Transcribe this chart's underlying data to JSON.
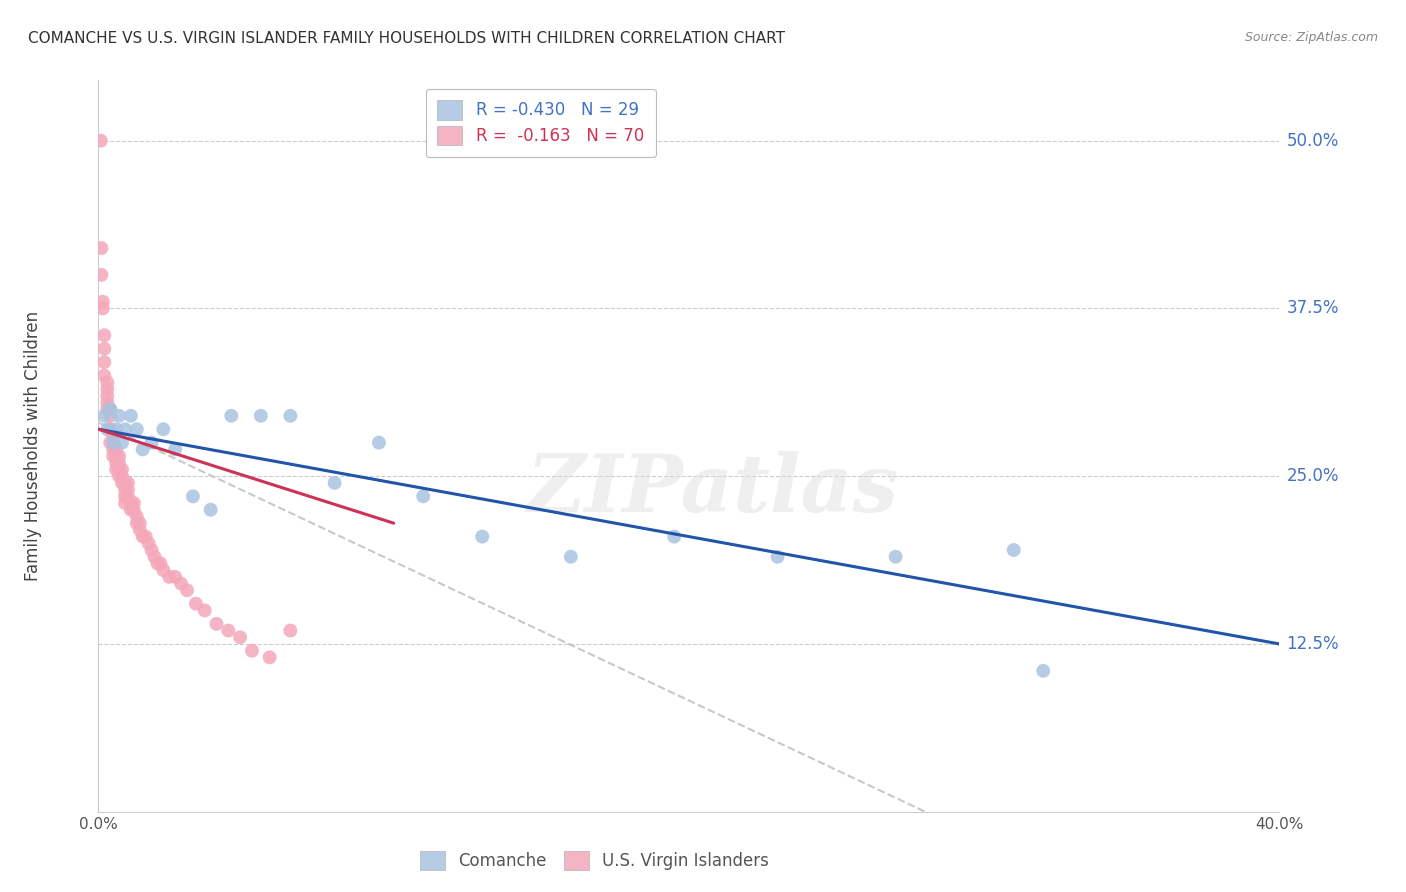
{
  "title": "COMANCHE VS U.S. VIRGIN ISLANDER FAMILY HOUSEHOLDS WITH CHILDREN CORRELATION CHART",
  "source": "Source: ZipAtlas.com",
  "ylabel": "Family Households with Children",
  "ytick_labels": [
    "50.0%",
    "37.5%",
    "25.0%",
    "12.5%"
  ],
  "ytick_values": [
    0.5,
    0.375,
    0.25,
    0.125
  ],
  "comanche_color": "#A8C4E0",
  "virgin_color": "#F4A7B9",
  "trendline_comanche_color": "#2255AA",
  "trendline_virgin_color": "#CC3355",
  "trendline_gray_color": "#BBBBBB",
  "watermark_text": "ZIPatlas",
  "background_color": "#FFFFFF",
  "comanche_x": [
    0.002,
    0.003,
    0.004,
    0.005,
    0.006,
    0.007,
    0.008,
    0.009,
    0.011,
    0.013,
    0.015,
    0.018,
    0.022,
    0.026,
    0.032,
    0.038,
    0.045,
    0.055,
    0.065,
    0.08,
    0.095,
    0.11,
    0.13,
    0.16,
    0.195,
    0.23,
    0.27,
    0.31,
    0.32
  ],
  "comanche_y": [
    0.295,
    0.285,
    0.3,
    0.275,
    0.285,
    0.295,
    0.275,
    0.285,
    0.295,
    0.285,
    0.27,
    0.275,
    0.285,
    0.27,
    0.235,
    0.225,
    0.295,
    0.295,
    0.295,
    0.245,
    0.275,
    0.235,
    0.205,
    0.19,
    0.205,
    0.19,
    0.19,
    0.195,
    0.105
  ],
  "virgin_x": [
    0.0008,
    0.001,
    0.001,
    0.0015,
    0.0015,
    0.002,
    0.002,
    0.002,
    0.002,
    0.003,
    0.003,
    0.003,
    0.003,
    0.003,
    0.004,
    0.004,
    0.004,
    0.004,
    0.004,
    0.005,
    0.005,
    0.005,
    0.005,
    0.006,
    0.006,
    0.006,
    0.006,
    0.006,
    0.007,
    0.007,
    0.007,
    0.007,
    0.008,
    0.008,
    0.008,
    0.009,
    0.009,
    0.009,
    0.009,
    0.01,
    0.01,
    0.01,
    0.011,
    0.011,
    0.012,
    0.012,
    0.013,
    0.013,
    0.014,
    0.014,
    0.015,
    0.016,
    0.017,
    0.018,
    0.019,
    0.02,
    0.021,
    0.022,
    0.024,
    0.026,
    0.028,
    0.03,
    0.033,
    0.036,
    0.04,
    0.044,
    0.048,
    0.052,
    0.058,
    0.065
  ],
  "virgin_y": [
    0.5,
    0.42,
    0.4,
    0.38,
    0.375,
    0.355,
    0.345,
    0.335,
    0.325,
    0.32,
    0.315,
    0.31,
    0.305,
    0.3,
    0.3,
    0.295,
    0.285,
    0.285,
    0.275,
    0.28,
    0.275,
    0.27,
    0.265,
    0.27,
    0.265,
    0.26,
    0.255,
    0.265,
    0.265,
    0.26,
    0.255,
    0.25,
    0.255,
    0.25,
    0.245,
    0.245,
    0.24,
    0.235,
    0.23,
    0.245,
    0.24,
    0.235,
    0.23,
    0.225,
    0.23,
    0.225,
    0.22,
    0.215,
    0.21,
    0.215,
    0.205,
    0.205,
    0.2,
    0.195,
    0.19,
    0.185,
    0.185,
    0.18,
    0.175,
    0.175,
    0.17,
    0.165,
    0.155,
    0.15,
    0.14,
    0.135,
    0.13,
    0.12,
    0.115,
    0.135
  ],
  "xlim": [
    0.0,
    0.4
  ],
  "ylim": [
    0.0,
    0.545
  ],
  "comanche_trendline_x": [
    0.0,
    0.4
  ],
  "comanche_trendline_y": [
    0.285,
    0.125
  ],
  "virgin_trendline_x": [
    0.0,
    0.1
  ],
  "virgin_trendline_y": [
    0.285,
    0.215
  ],
  "gray_trendline_x": [
    0.0,
    0.28
  ],
  "gray_trendline_y": [
    0.29,
    0.0
  ]
}
